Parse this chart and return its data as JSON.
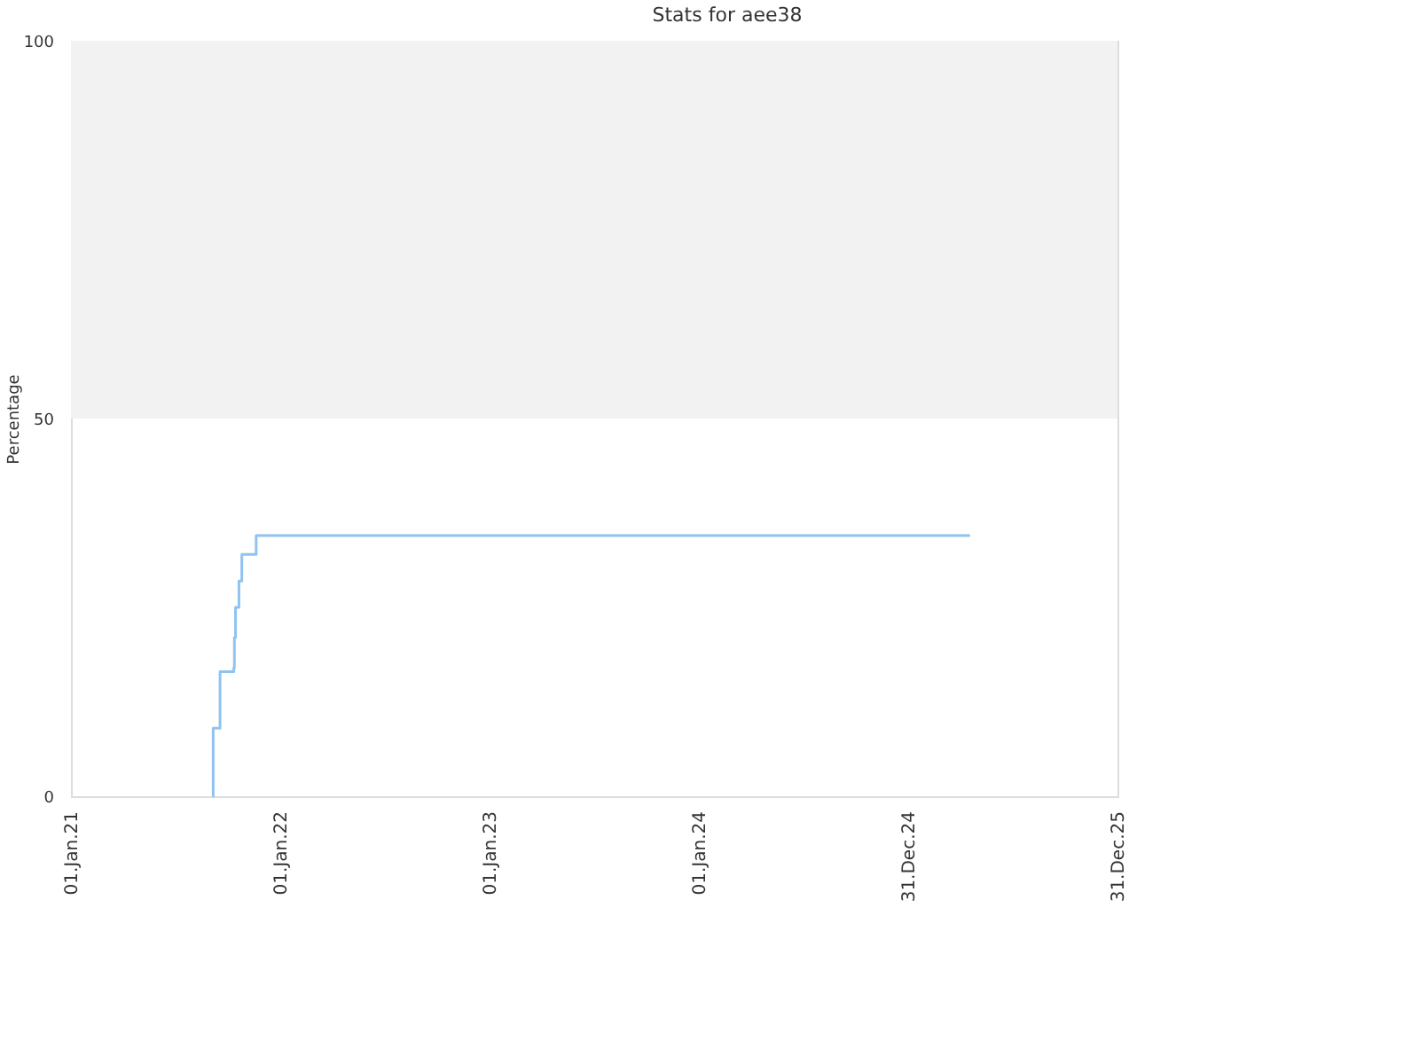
{
  "chart_data": {
    "type": "step",
    "title": "Stats for aee38",
    "ylabel": "Percentage",
    "x": [
      "2021-09-05",
      "2021-09-06",
      "2021-09-18",
      "2021-10-12",
      "2021-10-13",
      "2021-10-15",
      "2021-10-21",
      "2021-10-26",
      "2021-11-20",
      "2025-04-18"
    ],
    "series": [
      {
        "color": "#90c3f0",
        "values": [
          0,
          9,
          16.5,
          17,
          21,
          25,
          28.5,
          32,
          34.5,
          34.5
        ]
      }
    ],
    "xlim": [
      "2021-01-01",
      "2025-12-31"
    ],
    "xticks": [
      {
        "value": "2021-01-01",
        "label": "01.Jan.21"
      },
      {
        "value": "2022-01-01",
        "label": "01.Jan.22"
      },
      {
        "value": "2023-01-01",
        "label": "01.Jan.23"
      },
      {
        "value": "2024-01-01",
        "label": "01.Jan.24"
      },
      {
        "value": "2024-12-31",
        "label": "31.Dec.24"
      },
      {
        "value": "2025-12-31",
        "label": "31.Dec.25"
      }
    ],
    "ylim": [
      0,
      100
    ],
    "yticks": [
      0,
      50,
      100
    ],
    "bands": [
      {
        "axis": "y",
        "from": 50,
        "to": 100,
        "color": "#f2f2f2"
      }
    ],
    "grid": false,
    "line_style": "solid",
    "marker": "none"
  }
}
